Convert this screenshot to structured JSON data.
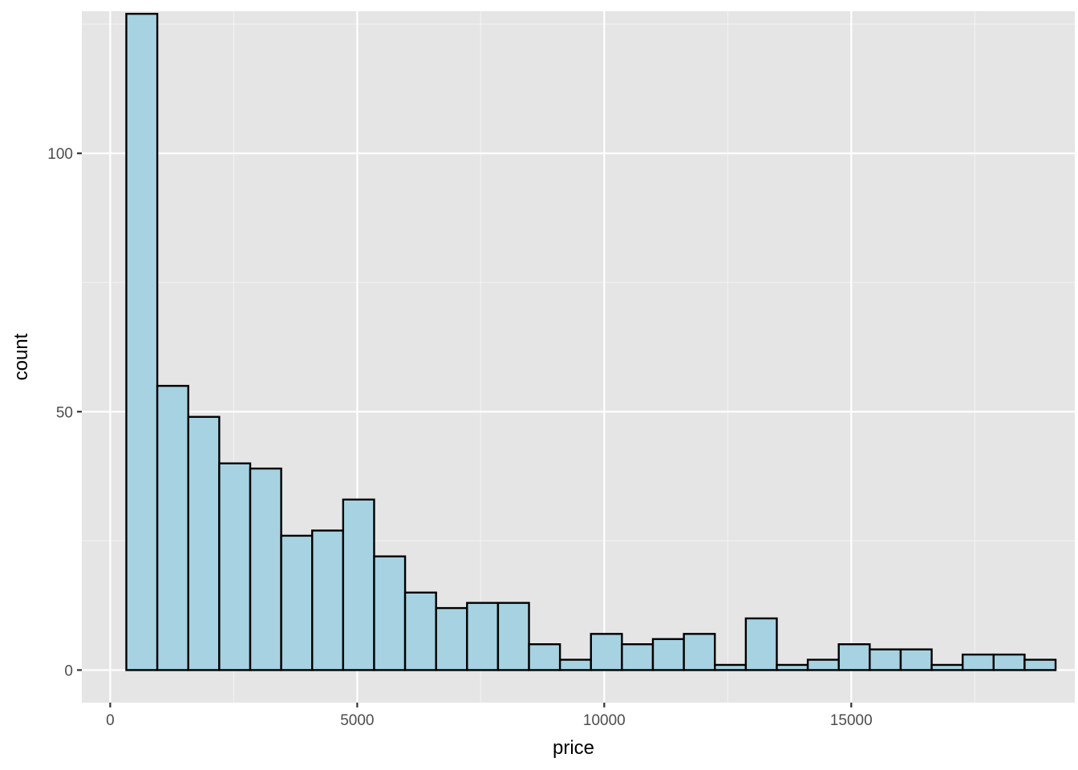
{
  "chart_data": {
    "type": "bar",
    "subtype": "histogram",
    "title": "",
    "xlabel": "price",
    "ylabel": "count",
    "xlim": [
      -575,
      19525
    ],
    "ylim": [
      -6.3,
      127.5
    ],
    "x_ticks": [
      {
        "value": 0,
        "label": "0"
      },
      {
        "value": 5000,
        "label": "5000"
      },
      {
        "value": 10000,
        "label": "10000"
      },
      {
        "value": 15000,
        "label": "15000"
      }
    ],
    "x_minor_ticks": [
      2500,
      7500,
      12500,
      17500
    ],
    "y_ticks": [
      {
        "value": 0,
        "label": "0"
      },
      {
        "value": 50,
        "label": "50"
      },
      {
        "value": 100,
        "label": "100"
      }
    ],
    "y_minor_ticks": [
      25,
      75,
      125
    ],
    "bins": [
      {
        "x0": 326,
        "x1": 953,
        "count": 127
      },
      {
        "x0": 953,
        "x1": 1580,
        "count": 55
      },
      {
        "x0": 1580,
        "x1": 2207,
        "count": 49
      },
      {
        "x0": 2207,
        "x1": 2834,
        "count": 40
      },
      {
        "x0": 2834,
        "x1": 3461,
        "count": 39
      },
      {
        "x0": 3461,
        "x1": 4088,
        "count": 26
      },
      {
        "x0": 4088,
        "x1": 4715,
        "count": 27
      },
      {
        "x0": 4715,
        "x1": 5342,
        "count": 33
      },
      {
        "x0": 5342,
        "x1": 5969,
        "count": 22
      },
      {
        "x0": 5969,
        "x1": 6596,
        "count": 15
      },
      {
        "x0": 6596,
        "x1": 7223,
        "count": 12
      },
      {
        "x0": 7223,
        "x1": 7850,
        "count": 13
      },
      {
        "x0": 7850,
        "x1": 8477,
        "count": 13
      },
      {
        "x0": 8477,
        "x1": 9104,
        "count": 5
      },
      {
        "x0": 9104,
        "x1": 9731,
        "count": 2
      },
      {
        "x0": 9731,
        "x1": 10358,
        "count": 7
      },
      {
        "x0": 10358,
        "x1": 10985,
        "count": 5
      },
      {
        "x0": 10985,
        "x1": 11612,
        "count": 6
      },
      {
        "x0": 11612,
        "x1": 12239,
        "count": 7
      },
      {
        "x0": 12239,
        "x1": 12866,
        "count": 1
      },
      {
        "x0": 12866,
        "x1": 13493,
        "count": 10
      },
      {
        "x0": 13493,
        "x1": 14120,
        "count": 1
      },
      {
        "x0": 14120,
        "x1": 14747,
        "count": 2
      },
      {
        "x0": 14747,
        "x1": 15374,
        "count": 5
      },
      {
        "x0": 15374,
        "x1": 16001,
        "count": 4
      },
      {
        "x0": 16001,
        "x1": 16628,
        "count": 4
      },
      {
        "x0": 16628,
        "x1": 17255,
        "count": 1
      },
      {
        "x0": 17255,
        "x1": 17882,
        "count": 3
      },
      {
        "x0": 17882,
        "x1": 18509,
        "count": 3
      },
      {
        "x0": 18509,
        "x1": 19136,
        "count": 2
      }
    ],
    "grid": true,
    "legend": "none",
    "colors": {
      "panel_background": "#e5e5e5",
      "grid_major": "#ffffff",
      "grid_minor": "#f2f2f2",
      "bar_fill": "#a6d2e1",
      "bar_stroke": "#000000",
      "tick_text": "#4d4d4d",
      "axis_title": "#000000"
    }
  }
}
